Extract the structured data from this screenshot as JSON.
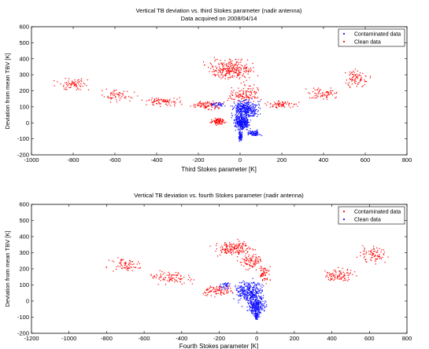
{
  "chart_data": [
    {
      "type": "scatter",
      "title": "Vertical TB deviation vs. third Stokes parameter (nadir antenna)",
      "subtitle": "Data acquired on 2008/04/14",
      "xlabel": "Third Stokes parameter [K]",
      "ylabel": "Deviation from mean TBV [K]",
      "xlim": [
        -1000,
        800
      ],
      "ylim": [
        -200,
        600
      ],
      "xticks": [
        "-1000",
        "-800",
        "-600",
        "-400",
        "-200",
        "0",
        "200",
        "400",
        "600",
        "800"
      ],
      "yticks": [
        "-200",
        "-100",
        "0",
        "100",
        "200",
        "300",
        "400",
        "500",
        "600"
      ],
      "legend_position": "top-right",
      "grid": false,
      "series": [
        {
          "name": "Contaminated data",
          "color": "#1010ff",
          "clusters": [
            {
              "x": [
                -60,
                110
              ],
              "y": [
                10,
                160
              ],
              "n": 380
            },
            {
              "x": [
                -40,
                60
              ],
              "y": [
                -60,
                60
              ],
              "n": 320
            },
            {
              "x": [
                -10,
                15
              ],
              "y": [
                -125,
                -40
              ],
              "n": 90
            },
            {
              "x": [
                20,
                110
              ],
              "y": [
                -90,
                -40
              ],
              "n": 80
            },
            {
              "x": [
                -150,
                -60
              ],
              "y": [
                90,
                140
              ],
              "n": 30
            }
          ]
        },
        {
          "name": "Clean data",
          "color": "#ff0000",
          "clusters": [
            {
              "x": [
                -920,
                -680
              ],
              "y": [
                190,
                290
              ],
              "n": 70
            },
            {
              "x": [
                -700,
                -480
              ],
              "y": [
                120,
                220
              ],
              "n": 60
            },
            {
              "x": [
                -500,
                -250
              ],
              "y": [
                100,
                170
              ],
              "n": 80
            },
            {
              "x": [
                -250,
                -60
              ],
              "y": [
                70,
                150
              ],
              "n": 90
            },
            {
              "x": [
                -200,
                110
              ],
              "y": [
                240,
                420
              ],
              "n": 260
            },
            {
              "x": [
                -80,
                120
              ],
              "y": [
                90,
                260
              ],
              "n": 120
            },
            {
              "x": [
                -150,
                -60
              ],
              "y": [
                -20,
                40
              ],
              "n": 90
            },
            {
              "x": [
                90,
                300
              ],
              "y": [
                80,
                150
              ],
              "n": 70
            },
            {
              "x": [
                300,
                500
              ],
              "y": [
                130,
                230
              ],
              "n": 70
            },
            {
              "x": [
                480,
                640
              ],
              "y": [
                200,
                350
              ],
              "n": 80
            }
          ]
        }
      ]
    },
    {
      "type": "scatter",
      "title": "Vertical TB deviation vs. fourth Stokes parameter (nadir antenna)",
      "xlabel": "Fourth Stokes parameter [K]",
      "ylabel": "Deviation from mean TBV [K]",
      "xlim": [
        -1200,
        800
      ],
      "ylim": [
        -200,
        600
      ],
      "xticks": [
        "-1200",
        "-1000",
        "-800",
        "-600",
        "-400",
        "-200",
        "0",
        "200",
        "400",
        "600",
        "800"
      ],
      "yticks": [
        "-200",
        "-100",
        "0",
        "100",
        "200",
        "300",
        "400",
        "500",
        "600"
      ],
      "legend_position": "top-right",
      "grid": false,
      "series": [
        {
          "name": "Contaminated data",
          "color": "#ff0000",
          "clusters": [
            {
              "x": [
                -820,
                -560
              ],
              "y": [
                170,
                280
              ],
              "n": 70
            },
            {
              "x": [
                -600,
                -300
              ],
              "y": [
                90,
                200
              ],
              "n": 90
            },
            {
              "x": [
                -320,
                -100
              ],
              "y": [
                20,
                110
              ],
              "n": 90
            },
            {
              "x": [
                -260,
                20
              ],
              "y": [
                260,
                390
              ],
              "n": 160
            },
            {
              "x": [
                -120,
                70
              ],
              "y": [
                180,
                300
              ],
              "n": 90
            },
            {
              "x": [
                0,
                80
              ],
              "y": [
                100,
                250
              ],
              "n": 60
            },
            {
              "x": [
                300,
                560
              ],
              "y": [
                100,
                220
              ],
              "n": 90
            },
            {
              "x": [
                520,
                720
              ],
              "y": [
                220,
                360
              ],
              "n": 80
            }
          ]
        },
        {
          "name": "Clean data",
          "color": "#1010ff",
          "clusters": [
            {
              "x": [
                -140,
                60
              ],
              "y": [
                -40,
                150
              ],
              "n": 360
            },
            {
              "x": [
                -60,
                60
              ],
              "y": [
                -110,
                40
              ],
              "n": 260
            },
            {
              "x": [
                -15,
                15
              ],
              "y": [
                -125,
                -60
              ],
              "n": 60
            },
            {
              "x": [
                -230,
                -120
              ],
              "y": [
                60,
                130
              ],
              "n": 40
            }
          ]
        }
      ]
    }
  ]
}
